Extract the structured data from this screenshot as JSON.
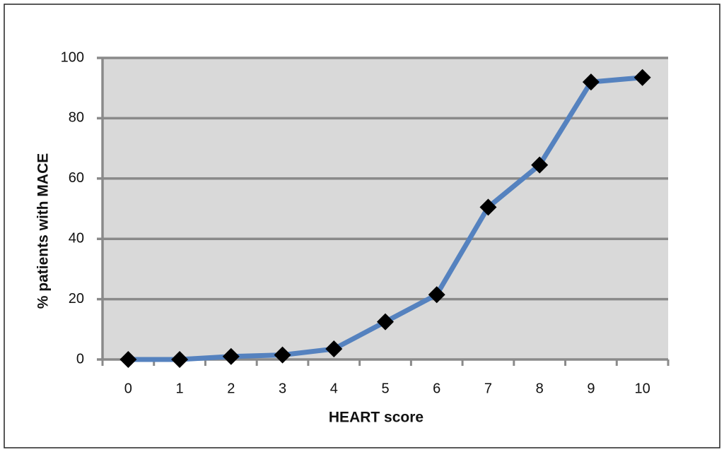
{
  "chart_data": {
    "type": "line",
    "x_label": "HEART score",
    "y_label": "% patients with MACE",
    "categories": [
      "0",
      "1",
      "2",
      "3",
      "4",
      "5",
      "6",
      "7",
      "8",
      "9",
      "10"
    ],
    "series": [
      {
        "name": "% patients with MACE",
        "color": "#5582bf",
        "values": [
          0,
          0,
          1,
          1.5,
          3.5,
          12.5,
          21.5,
          50.5,
          64.5,
          92,
          93.5
        ]
      }
    ],
    "marker_color": "#000000",
    "ylim": [
      0,
      100
    ],
    "yticks": [
      0,
      20,
      40,
      60,
      80,
      100
    ],
    "grid": true,
    "plot_background": "#d9d9d9"
  }
}
